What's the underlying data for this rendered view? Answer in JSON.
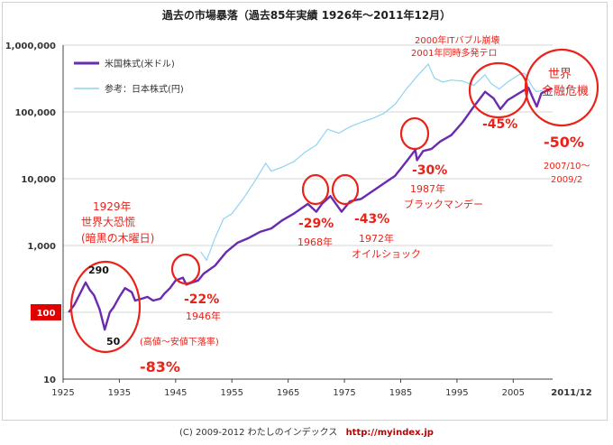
{
  "colors": {
    "us": "#6a2bb0",
    "jp": "#8fd3ee",
    "annot": "#e8231a",
    "axis": "#444444",
    "grid": "#d6d6d6"
  },
  "chart_data": {
    "type": "line",
    "title": "過去の市場暴落（過去85年実績 1926年〜2011年12月）",
    "yscale": "log",
    "ylim": [
      10,
      1000000
    ],
    "xlim": [
      1925,
      2012
    ],
    "y_ticks": [
      "1,000,000",
      "100,000",
      "10,000",
      "1,000",
      "100",
      "10"
    ],
    "x_ticks": [
      "1925",
      "1935",
      "1945",
      "1955",
      "1965",
      "1975",
      "1985",
      "1995",
      "2005",
      "2011/12"
    ],
    "y_base_label": "100",
    "series": [
      {
        "name": "米国株式(米ドル)",
        "color": "#6a2bb0",
        "x": [
          1926,
          1927,
          1928,
          1929,
          1929.7,
          1930.5,
          1931.5,
          1932.4,
          1933.3,
          1934,
          1935,
          1936,
          1937.2,
          1937.8,
          1939,
          1940,
          1941,
          1942.3,
          1943,
          1944,
          1945,
          1946.3,
          1946.9,
          1948,
          1949,
          1950,
          1952,
          1954,
          1956,
          1958,
          1960,
          1962,
          1964,
          1966,
          1968.5,
          1970,
          1971,
          1972.5,
          1974.5,
          1976,
          1978,
          1980,
          1982,
          1984,
          1986,
          1987.6,
          1987.9,
          1989,
          1990.5,
          1992,
          1994,
          1996,
          1998,
          2000,
          2001.5,
          2002.7,
          2004,
          2006,
          2007.7,
          2008.5,
          2009.2,
          2010,
          2011,
          2011.9
        ],
        "y": [
          100,
          130,
          190,
          280,
          220,
          180,
          110,
          55,
          100,
          120,
          170,
          230,
          200,
          150,
          160,
          170,
          150,
          160,
          190,
          230,
          300,
          330,
          260,
          280,
          300,
          380,
          500,
          800,
          1100,
          1300,
          1600,
          1800,
          2400,
          3000,
          4200,
          3200,
          4200,
          5500,
          3200,
          4600,
          5000,
          6500,
          8500,
          11000,
          18000,
          27000,
          19000,
          26000,
          28000,
          36000,
          45000,
          70000,
          120000,
          200000,
          160000,
          110000,
          150000,
          190000,
          230000,
          160000,
          120000,
          190000,
          210000,
          225000
        ]
      },
      {
        "name": "参考：日本株式(円)",
        "color": "#8fd3ee",
        "x": [
          1949.5,
          1950.5,
          1952,
          1953.5,
          1955,
          1957,
          1959,
          1961,
          1962,
          1964,
          1966,
          1968,
          1970,
          1972,
          1974,
          1976,
          1978,
          1980,
          1982,
          1984,
          1986,
          1988,
          1989.9,
          1991,
          1992.5,
          1994,
          1996,
          1998,
          2000,
          2001,
          2002.5,
          2004,
          2006,
          2007,
          2008.5,
          2009.2,
          2010,
          2011,
          2011.9
        ],
        "y": [
          800,
          600,
          1300,
          2500,
          3000,
          5000,
          9000,
          17000,
          13000,
          15000,
          18000,
          25000,
          32000,
          55000,
          48000,
          60000,
          70000,
          80000,
          95000,
          130000,
          220000,
          350000,
          520000,
          320000,
          280000,
          300000,
          290000,
          250000,
          360000,
          270000,
          220000,
          280000,
          360000,
          380000,
          230000,
          200000,
          210000,
          180000,
          175000
        ]
      }
    ],
    "annotations": [
      {
        "text": "1929年",
        "color": "red"
      },
      {
        "text": "世界大恐慌",
        "color": "red"
      },
      {
        "text": "(暗黒の木曜日)",
        "color": "red"
      },
      {
        "text": "290",
        "color": "black"
      },
      {
        "text": "50",
        "color": "black"
      },
      {
        "text": "(高値〜安値下落率)",
        "color": "red"
      },
      {
        "text": "-83%",
        "color": "red"
      },
      {
        "text": "-22%",
        "color": "red"
      },
      {
        "text": "1946年",
        "color": "red"
      },
      {
        "text": "-29%",
        "color": "red"
      },
      {
        "text": "1968年",
        "color": "red"
      },
      {
        "text": "-43%",
        "color": "red"
      },
      {
        "text": "1972年",
        "color": "red"
      },
      {
        "text": "オイルショック",
        "color": "red"
      },
      {
        "text": "-30%",
        "color": "red"
      },
      {
        "text": "1987年",
        "color": "red"
      },
      {
        "text": "ブラックマンデー",
        "color": "red"
      },
      {
        "text": "2000年ITバブル崩壊",
        "color": "red"
      },
      {
        "text": "2001年同時多発テロ",
        "color": "red"
      },
      {
        "text": "-45%",
        "color": "red"
      },
      {
        "text": "世界",
        "color": "red"
      },
      {
        "text": "金融危機",
        "color": "red"
      },
      {
        "text": "-50%",
        "color": "red"
      },
      {
        "text": "2007/10〜",
        "color": "red"
      },
      {
        "text": "2009/2",
        "color": "red"
      }
    ]
  },
  "credit": {
    "text": "(C) 2009-2012 わたしのインデックス",
    "url": "http://myindex.jp"
  }
}
